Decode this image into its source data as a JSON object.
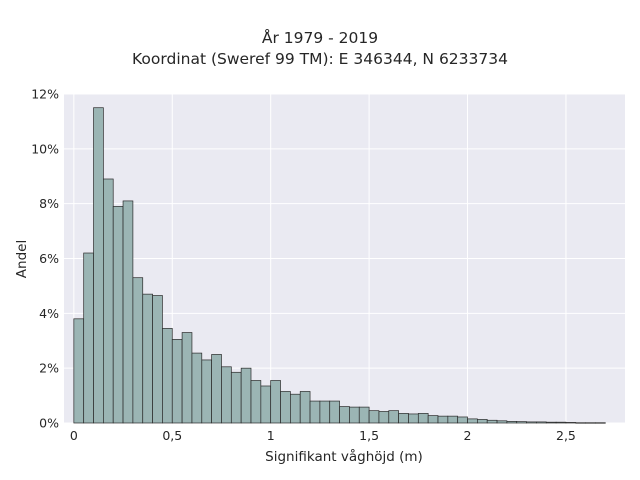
{
  "chart_data": {
    "type": "bar",
    "title": "År 1979 - 2019",
    "subtitle": "Koordinat (Sweref 99 TM): E 346344, N 6233734",
    "xlabel": "Signifikant våghöjd (m)",
    "ylabel": "Andel",
    "xlim": [
      -0.05,
      2.8
    ],
    "ylim": [
      0,
      12
    ],
    "x_ticks": [
      0,
      0.5,
      1,
      1.5,
      2,
      2.5
    ],
    "x_tick_labels": [
      "0",
      "0,5",
      "1",
      "1,5",
      "2",
      "2,5"
    ],
    "y_ticks": [
      0,
      2,
      4,
      6,
      8,
      10,
      12
    ],
    "y_tick_labels": [
      "0%",
      "2%",
      "4%",
      "6%",
      "8%",
      "10%",
      "12%"
    ],
    "y_unit": "%",
    "bin_width": 0.05,
    "bin_start": 0.0,
    "values": [
      3.8,
      6.2,
      11.5,
      8.9,
      7.9,
      8.1,
      5.3,
      4.7,
      4.65,
      3.45,
      3.05,
      3.3,
      2.55,
      2.3,
      2.5,
      2.05,
      1.85,
      2.0,
      1.55,
      1.35,
      1.55,
      1.15,
      1.05,
      1.15,
      0.8,
      0.8,
      0.8,
      0.6,
      0.58,
      0.58,
      0.45,
      0.42,
      0.45,
      0.35,
      0.33,
      0.35,
      0.27,
      0.25,
      0.25,
      0.22,
      0.15,
      0.13,
      0.1,
      0.08,
      0.06,
      0.05,
      0.04,
      0.04,
      0.03,
      0.03,
      0.02,
      0.01,
      0.01,
      0.01
    ],
    "grid": true,
    "colors": {
      "bar_fill": "#9bb5b4",
      "bar_edge": "#2a2a2a",
      "plot_background": "#eaeaf2",
      "grid": "#ffffff"
    }
  }
}
